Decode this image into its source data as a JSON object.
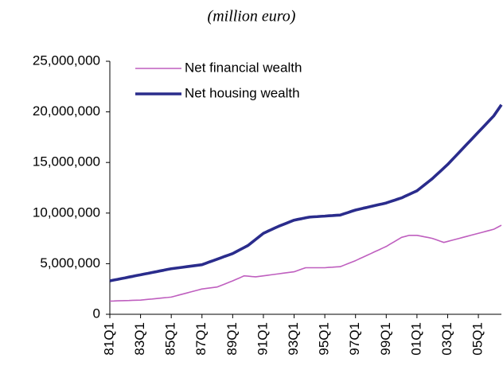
{
  "chart_data": {
    "type": "line",
    "title": "(million euro)",
    "categories": [
      "81Q1",
      null,
      null,
      null,
      null,
      null,
      null,
      null,
      "83Q1",
      null,
      null,
      null,
      null,
      null,
      null,
      null,
      "85Q1",
      null,
      null,
      null,
      null,
      null,
      null,
      null,
      "87Q1",
      null,
      null,
      null,
      null,
      null,
      null,
      null,
      "89Q1",
      null,
      null,
      null,
      null,
      null,
      null,
      null,
      "91Q1",
      null,
      null,
      null,
      null,
      null,
      null,
      null,
      "93Q1",
      null,
      null,
      null,
      null,
      null,
      null,
      null,
      "95Q1",
      null,
      null,
      null,
      null,
      null,
      null,
      null,
      "97Q1",
      null,
      null,
      null,
      null,
      null,
      null,
      null,
      "99Q1",
      null,
      null,
      null,
      null,
      null,
      null,
      null,
      "01Q1",
      null,
      null,
      null,
      null,
      null,
      null,
      null,
      "03Q1",
      null,
      null,
      null,
      null,
      null,
      null,
      null,
      "05Q1",
      null,
      null,
      null,
      null,
      null,
      null
    ],
    "series": [
      {
        "name": "Net financial wealth",
        "color": "#bf5fbf",
        "width": 1.6,
        "values": [
          1300000,
          1310000,
          1330000,
          1340000,
          1350000,
          1360000,
          1380000,
          1390000,
          1400000,
          1440000,
          1480000,
          1510000,
          1550000,
          1590000,
          1630000,
          1660000,
          1700000,
          1800000,
          1900000,
          2000000,
          2100000,
          2200000,
          2300000,
          2400000,
          2500000,
          2550000,
          2600000,
          2650000,
          2700000,
          2850000,
          3000000,
          3150000,
          3300000,
          3470000,
          3630000,
          3800000,
          3770000,
          3730000,
          3700000,
          3750000,
          3800000,
          3850000,
          3900000,
          3950000,
          4000000,
          4050000,
          4100000,
          4150000,
          4200000,
          4330000,
          4470000,
          4600000,
          4600000,
          4600000,
          4600000,
          4600000,
          4600000,
          4630000,
          4650000,
          4680000,
          4700000,
          4850000,
          5000000,
          5150000,
          5300000,
          5480000,
          5650000,
          5830000,
          6000000,
          6180000,
          6350000,
          6530000,
          6700000,
          6930000,
          7150000,
          7380000,
          7600000,
          7700000,
          7800000,
          7800000,
          7800000,
          7730000,
          7650000,
          7580000,
          7500000,
          7370000,
          7230000,
          7100000,
          7200000,
          7300000,
          7400000,
          7500000,
          7600000,
          7700000,
          7800000,
          7900000,
          8000000,
          8100000,
          8200000,
          8300000,
          8400000,
          8600000,
          8800000
        ]
      },
      {
        "name": "Net housing wealth",
        "color": "#2a2c8c",
        "width": 3.6,
        "values": [
          3300000,
          3380000,
          3450000,
          3530000,
          3600000,
          3680000,
          3750000,
          3830000,
          3900000,
          3980000,
          4050000,
          4130000,
          4200000,
          4280000,
          4350000,
          4430000,
          4500000,
          4550000,
          4600000,
          4650000,
          4700000,
          4750000,
          4800000,
          4850000,
          4900000,
          5040000,
          5180000,
          5310000,
          5450000,
          5590000,
          5730000,
          5860000,
          6000000,
          6200000,
          6400000,
          6600000,
          6800000,
          7100000,
          7400000,
          7700000,
          8000000,
          8180000,
          8350000,
          8530000,
          8700000,
          8850000,
          9000000,
          9150000,
          9300000,
          9380000,
          9450000,
          9530000,
          9600000,
          9630000,
          9650000,
          9680000,
          9700000,
          9730000,
          9750000,
          9780000,
          9800000,
          9930000,
          10050000,
          10180000,
          10300000,
          10390000,
          10480000,
          10560000,
          10650000,
          10740000,
          10830000,
          10910000,
          11000000,
          11130000,
          11250000,
          11380000,
          11500000,
          11680000,
          11850000,
          12030000,
          12200000,
          12500000,
          12800000,
          13100000,
          13400000,
          13750000,
          14100000,
          14450000,
          14800000,
          15200000,
          15600000,
          16000000,
          16400000,
          16800000,
          17200000,
          17600000,
          18000000,
          18400000,
          18800000,
          19200000,
          19600000,
          20150000,
          20700000
        ]
      }
    ],
    "ylim": [
      0,
      25000000
    ],
    "yticks": [
      0,
      {
        "value": 5000000,
        "label": "5,000,000"
      },
      {
        "value": 10000000,
        "label": "10,000,000"
      },
      {
        "value": 15000000,
        "label": "15,000,000"
      },
      {
        "value": 20000000,
        "label": "20,000,000"
      },
      {
        "value": 25000000,
        "label": "25,000,000"
      }
    ],
    "grid": false,
    "legend": "top-left"
  }
}
